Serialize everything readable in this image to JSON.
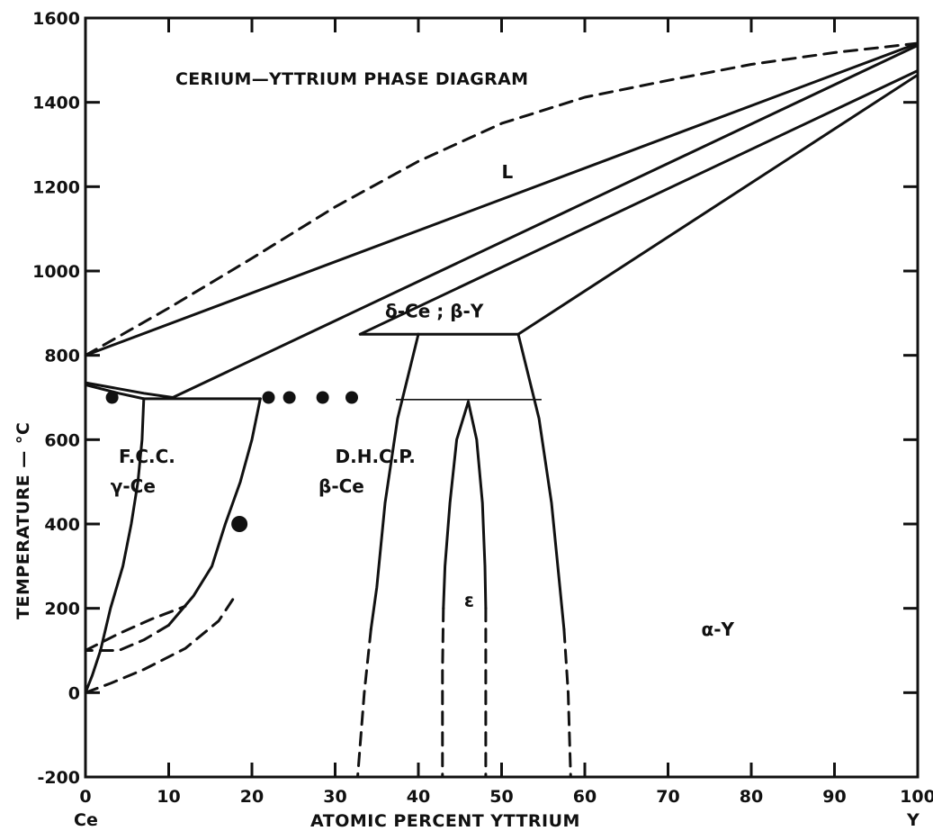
{
  "chart_data": {
    "type": "phase-diagram",
    "title": "CERIUM—YTTRIUM PHASE DIAGRAM",
    "xlabel": "ATOMIC PERCENT YTTRIUM",
    "ylabel": "TEMPERATURE — °C",
    "xlim": [
      0,
      100
    ],
    "ylim": [
      -200,
      1600
    ],
    "x_ticks": [
      0,
      10,
      20,
      30,
      40,
      50,
      60,
      70,
      80,
      90,
      100
    ],
    "y_ticks": [
      -200,
      0,
      200,
      400,
      600,
      800,
      1000,
      1200,
      1400,
      1600
    ],
    "end_labels": {
      "left": "Ce",
      "right": "Y"
    },
    "regions": [
      {
        "label": "L",
        "x": 50,
        "y": 1220
      },
      {
        "label": "δ-Ce ; β-Y",
        "x": 36,
        "y": 890
      },
      {
        "label": "F.C.C.",
        "x": 4,
        "y": 545
      },
      {
        "label": "γ-Ce",
        "x": 3,
        "y": 475
      },
      {
        "label": "D.H.C.P.",
        "x": 30,
        "y": 545
      },
      {
        "label": "β-Ce",
        "x": 28,
        "y": 475
      },
      {
        "label": "ε",
        "x": 45.5,
        "y": 205
      },
      {
        "label": "α-Y",
        "x": 74,
        "y": 135
      }
    ],
    "series": [
      {
        "style": "dashed",
        "points": [
          [
            0,
            800
          ],
          [
            10,
            912
          ],
          [
            20,
            1030
          ],
          [
            30,
            1152
          ],
          [
            40,
            1260
          ],
          [
            50,
            1350
          ],
          [
            60,
            1412
          ],
          [
            70,
            1452
          ],
          [
            80,
            1490
          ],
          [
            90,
            1518
          ],
          [
            100,
            1540
          ]
        ]
      },
      {
        "style": "solid",
        "points": [
          [
            0,
            800
          ],
          [
            100,
            1540
          ]
        ]
      },
      {
        "style": "solid",
        "points": [
          [
            10.5,
            700
          ],
          [
            100,
            1535
          ]
        ]
      },
      {
        "style": "solid",
        "points": [
          [
            33,
            850
          ],
          [
            100,
            1475
          ]
        ]
      },
      {
        "style": "solid",
        "points": [
          [
            52,
            850
          ],
          [
            100,
            1465
          ]
        ]
      },
      {
        "style": "solid",
        "points": [
          [
            33,
            850
          ],
          [
            52,
            850
          ]
        ]
      },
      {
        "style": "solid",
        "points": [
          [
            0,
            735
          ],
          [
            7,
            710
          ],
          [
            10.5,
            700
          ]
        ]
      },
      {
        "style": "solid",
        "points": [
          [
            0,
            730
          ],
          [
            4,
            710
          ],
          [
            7,
            697
          ]
        ]
      },
      {
        "style": "solid",
        "points": [
          [
            7,
            697
          ],
          [
            21,
            697
          ]
        ]
      },
      {
        "style": "solid",
        "points": [
          [
            7,
            697
          ],
          [
            6.8,
            600
          ],
          [
            6.3,
            500
          ],
          [
            5.5,
            400
          ],
          [
            4.5,
            300
          ],
          [
            3,
            200
          ],
          [
            1.8,
            100
          ],
          [
            0.8,
            40
          ],
          [
            0,
            0
          ]
        ]
      },
      {
        "style": "solid",
        "points": [
          [
            21,
            697
          ],
          [
            20,
            600
          ],
          [
            18.6,
            500
          ],
          [
            16.8,
            400
          ],
          [
            15.2,
            300
          ],
          [
            13,
            230
          ],
          [
            10,
            160
          ]
        ]
      },
      {
        "style": "dashed",
        "points": [
          [
            10,
            160
          ],
          [
            7,
            125
          ],
          [
            4,
            100
          ],
          [
            0,
            100
          ]
        ]
      },
      {
        "style": "dashed",
        "points": [
          [
            0,
            100
          ],
          [
            4,
            140
          ],
          [
            8,
            175
          ],
          [
            12,
            205
          ]
        ]
      },
      {
        "style": "dashed",
        "points": [
          [
            0,
            0
          ],
          [
            3,
            22
          ],
          [
            7,
            55
          ],
          [
            12,
            105
          ],
          [
            16,
            170
          ],
          [
            18,
            230
          ]
        ]
      },
      {
        "style": "solid",
        "points": [
          [
            40,
            850
          ],
          [
            37.5,
            650
          ],
          [
            36,
            450
          ],
          [
            35,
            250
          ],
          [
            34.3,
            150
          ]
        ]
      },
      {
        "style": "dashed",
        "points": [
          [
            34.3,
            150
          ],
          [
            33.5,
            0
          ],
          [
            32.7,
            -200
          ]
        ]
      },
      {
        "style": "solid",
        "points": [
          [
            52,
            850
          ],
          [
            54.5,
            650
          ],
          [
            56,
            450
          ],
          [
            57,
            250
          ],
          [
            57.5,
            150
          ]
        ]
      },
      {
        "style": "dashed",
        "points": [
          [
            57.5,
            150
          ],
          [
            58,
            0
          ],
          [
            58.3,
            -200
          ]
        ]
      },
      {
        "style": "solid",
        "points": [
          [
            46,
            690
          ],
          [
            44.6,
            600
          ],
          [
            43.8,
            450
          ],
          [
            43.2,
            300
          ],
          [
            43,
            200
          ]
        ]
      },
      {
        "style": "dashed",
        "points": [
          [
            43,
            200
          ],
          [
            42.9,
            50
          ],
          [
            42.9,
            -200
          ]
        ]
      },
      {
        "style": "solid",
        "points": [
          [
            46,
            690
          ],
          [
            47,
            600
          ],
          [
            47.7,
            450
          ],
          [
            48,
            300
          ],
          [
            48.1,
            200
          ]
        ]
      },
      {
        "style": "dashed",
        "points": [
          [
            48.1,
            200
          ],
          [
            48.1,
            50
          ],
          [
            48.1,
            -200
          ]
        ]
      },
      {
        "style": "thin",
        "points": [
          [
            37.3,
            695
          ],
          [
            54.8,
            695
          ]
        ]
      }
    ],
    "data_points": [
      {
        "x": 3.2,
        "y": 700,
        "size": "small"
      },
      {
        "x": 22,
        "y": 700,
        "size": "small"
      },
      {
        "x": 24.5,
        "y": 700,
        "size": "small"
      },
      {
        "x": 28.5,
        "y": 700,
        "size": "small"
      },
      {
        "x": 32,
        "y": 700,
        "size": "small"
      },
      {
        "x": 18.5,
        "y": 400,
        "size": "large"
      }
    ]
  }
}
